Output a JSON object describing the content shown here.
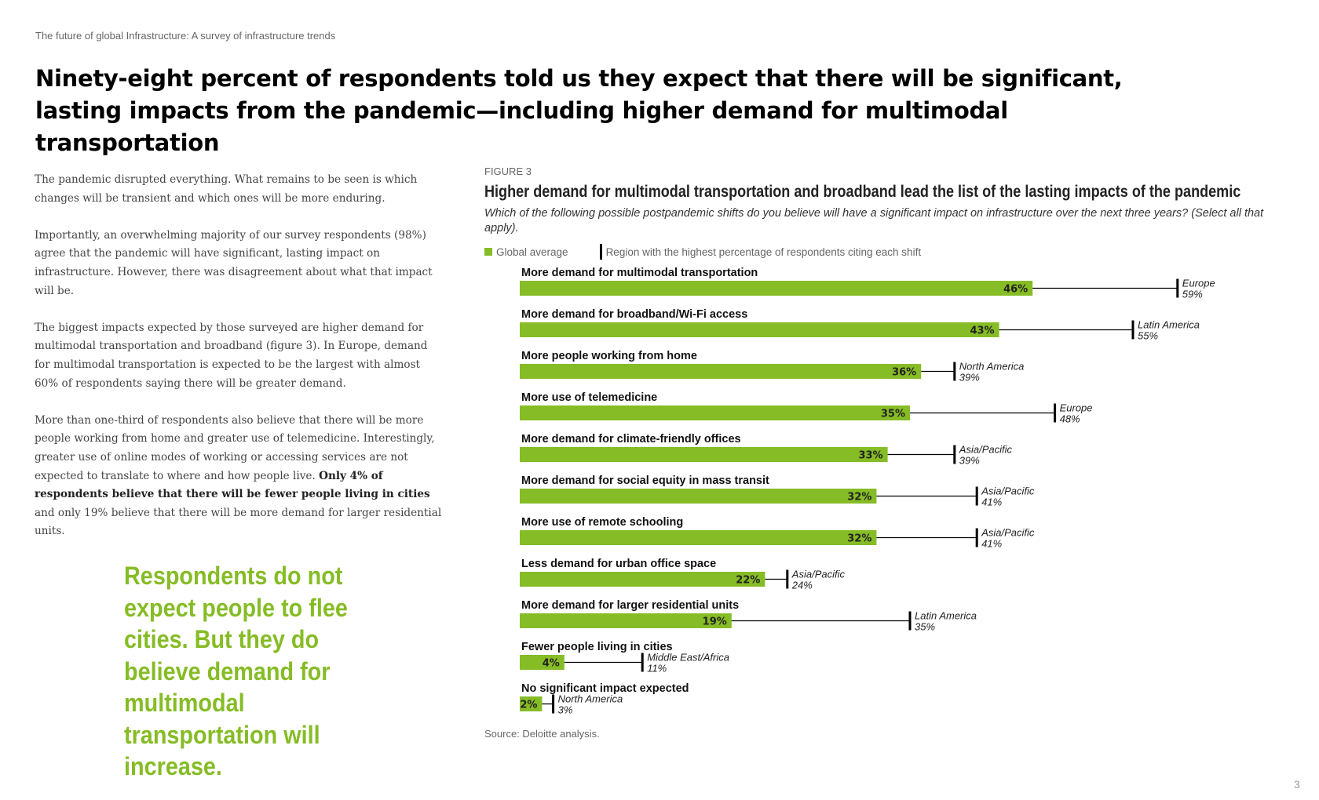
{
  "header": {
    "running_title": "The future of global Infrastructure: A survey of infrastructure trends",
    "headline": "Ninety-eight percent of respondents told us they expect that there will be significant, lasting impacts from the pandemic—including higher demand for multimodal transportation"
  },
  "body": {
    "p1": "The pandemic disrupted everything. What remains to be seen is which changes will be transient and which ones will be more enduring.",
    "p2": "Importantly, an overwhelming majority of our survey respondents (98%) agree that the pandemic will have significant, lasting impact on infrastructure. However, there was disagreement about what that impact will be.",
    "p3": "The biggest impacts expected by those surveyed are higher demand for multimodal transportation and broadband (figure 3). In Europe, demand for multimodal transportation is expected to be the largest with almost 60% of respondents saying there will be greater demand.",
    "p4_start": "More than one-third of respondents also believe that there will be more people working from home and greater use of telemedicine. Interestingly, greater use of online modes of working or accessing services are not expected to translate to where and how people live. ",
    "p4_bold": "Only 4% of respondents believe that there will be fewer people living in cities",
    "p4_end": " and only 19% believe that there will be more demand for larger residential units."
  },
  "pull_quote": "Respondents do not expect people to flee cities. But they do believe demand for multimodal transportation will increase.",
  "figure": {
    "label": "FIGURE 3",
    "title": "Higher demand for multimodal transportation and broadband lead the list of the lasting impacts of the pandemic",
    "subtitle": "Which of the following possible postpandemic shifts do you believe will have a significant impact on infrastructure over the next three years? (Select all that apply).",
    "legend_global": "Global average",
    "legend_region": "Region with the highest percentage of respondents citing each shift",
    "source": "Source: Deloitte analysis."
  },
  "chart_data": {
    "type": "bar",
    "orientation": "horizontal",
    "categories": [
      "More demand for multimodal transportation",
      "More demand for broadband/Wi-Fi access",
      "More people working from home",
      "More use of telemedicine",
      "More demand for climate-friendly offices",
      "More demand for social equity in mass transit",
      "More use of remote schooling",
      "Less demand for urban office space",
      "More demand for larger residential units",
      "Fewer people living in cities",
      "No significant impact expected"
    ],
    "series": [
      {
        "name": "Global average",
        "values": [
          46,
          43,
          36,
          35,
          33,
          32,
          32,
          22,
          19,
          4,
          2
        ],
        "unit": "%"
      },
      {
        "name": "Region with the highest percentage of respondents citing each shift",
        "values": [
          59,
          55,
          39,
          48,
          39,
          41,
          41,
          24,
          35,
          11,
          3
        ],
        "unit": "%"
      }
    ],
    "regions": [
      "Europe",
      "Latin America",
      "North America",
      "Europe",
      "Asia/Pacific",
      "Asia/Pacific",
      "Asia/Pacific",
      "Asia/Pacific",
      "Latin America",
      "Middle East/Africa",
      "North America"
    ],
    "xlim": [
      0,
      60
    ],
    "colors": {
      "bar": "#86bc25",
      "marker": "#000000"
    }
  },
  "page_number": "3"
}
